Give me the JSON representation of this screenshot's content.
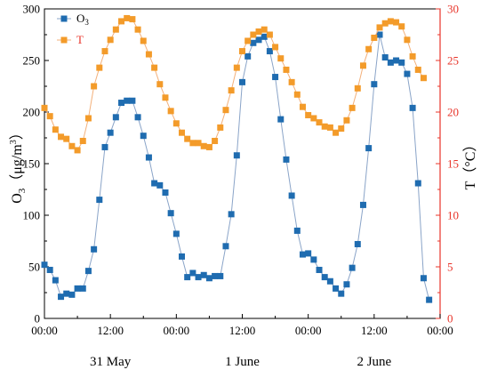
{
  "chart_data": {
    "type": "line",
    "x_unit": "hours",
    "x_ticks": [
      "00:00",
      "12:00",
      "00:00",
      "12:00",
      "00:00",
      "12:00",
      "00:00"
    ],
    "x_tick_values": [
      0,
      12,
      24,
      36,
      48,
      60,
      72
    ],
    "xlim": [
      0,
      72
    ],
    "date_labels": [
      {
        "label": "31 May",
        "x": 12
      },
      {
        "label": "1 June",
        "x": 36
      },
      {
        "label": "2 June",
        "x": 60
      }
    ],
    "y_left": {
      "label_main": "O",
      "label_sub": "3",
      "label_unit_open": "（μg/m",
      "label_unit_sup": "3",
      "label_unit_close": "）",
      "ylim": [
        0,
        300
      ],
      "ticks": [
        "0",
        "50",
        "100",
        "150",
        "200",
        "250",
        "300"
      ],
      "color": "#000000"
    },
    "y_right": {
      "label": "T（°C）",
      "ylim": [
        0,
        30
      ],
      "ticks": [
        "0",
        "5",
        "10",
        "15",
        "20",
        "25",
        "30"
      ],
      "color": "#e8342a"
    },
    "series": [
      {
        "name_main": "O",
        "name_sub": "3",
        "axis": "left",
        "color": "#1f6cb0",
        "x": [
          0,
          1,
          2,
          3,
          4,
          5,
          6,
          7,
          8,
          9,
          10,
          11,
          12,
          13,
          14,
          15,
          16,
          17,
          18,
          19,
          20,
          21,
          22,
          23,
          24,
          25,
          26,
          27,
          28,
          29,
          30,
          31,
          32,
          33,
          34,
          35,
          36,
          37,
          38,
          39,
          40,
          41,
          42,
          43,
          44,
          45,
          46,
          47,
          48,
          49,
          50,
          51,
          52,
          53,
          54,
          55,
          56,
          57,
          58,
          59,
          60,
          61,
          62,
          63,
          64,
          65,
          66,
          67,
          68,
          69,
          70,
          71,
          72
        ],
        "values": [
          52,
          47,
          37,
          21,
          24,
          23,
          29,
          29,
          46,
          67,
          115,
          166,
          180,
          195,
          209,
          211,
          211,
          195,
          177,
          156,
          131,
          129,
          122,
          102,
          82,
          60,
          40,
          44,
          40,
          42,
          39,
          41,
          41,
          70,
          101,
          158,
          229,
          254,
          267,
          270,
          273,
          259,
          234,
          193,
          154,
          119,
          85,
          62,
          63,
          57,
          47,
          40,
          36,
          29,
          24,
          33,
          49,
          72,
          110,
          165,
          227,
          275,
          253,
          248,
          250,
          248,
          237,
          204,
          131,
          39,
          18,
          null,
          null
        ]
      },
      {
        "name": "T",
        "axis": "right",
        "color": "#f39b2a",
        "x": [
          0,
          1,
          2,
          3,
          4,
          5,
          6,
          7,
          8,
          9,
          10,
          11,
          12,
          13,
          14,
          15,
          16,
          17,
          18,
          19,
          20,
          21,
          22,
          23,
          24,
          25,
          26,
          27,
          28,
          29,
          30,
          31,
          32,
          33,
          34,
          35,
          36,
          37,
          38,
          39,
          40,
          41,
          42,
          43,
          44,
          45,
          46,
          47,
          48,
          49,
          50,
          51,
          52,
          53,
          54,
          55,
          56,
          57,
          58,
          59,
          60,
          61,
          62,
          63,
          64,
          65,
          66,
          67,
          68,
          69,
          70,
          71,
          72
        ],
        "values": [
          20.4,
          19.6,
          18.3,
          17.6,
          17.4,
          16.7,
          16.3,
          17.2,
          19.4,
          22.5,
          24.3,
          25.9,
          27.0,
          28.0,
          28.8,
          29.1,
          29.0,
          28.0,
          26.9,
          25.6,
          24.3,
          22.7,
          21.4,
          20.1,
          18.9,
          18.0,
          17.4,
          17.0,
          17.0,
          16.7,
          16.6,
          17.2,
          18.5,
          20.2,
          22.1,
          24.3,
          25.9,
          26.9,
          27.5,
          27.8,
          28.0,
          27.5,
          26.3,
          25.2,
          24.1,
          22.9,
          21.7,
          20.5,
          19.7,
          19.4,
          19.0,
          18.6,
          18.5,
          18.0,
          18.4,
          19.2,
          20.4,
          22.3,
          24.5,
          26.1,
          27.2,
          28.2,
          28.6,
          28.8,
          28.7,
          28.3,
          27.0,
          25.4,
          24.1,
          23.3,
          null,
          null,
          null
        ]
      }
    ],
    "legend_position": "top-left",
    "grid": false
  }
}
